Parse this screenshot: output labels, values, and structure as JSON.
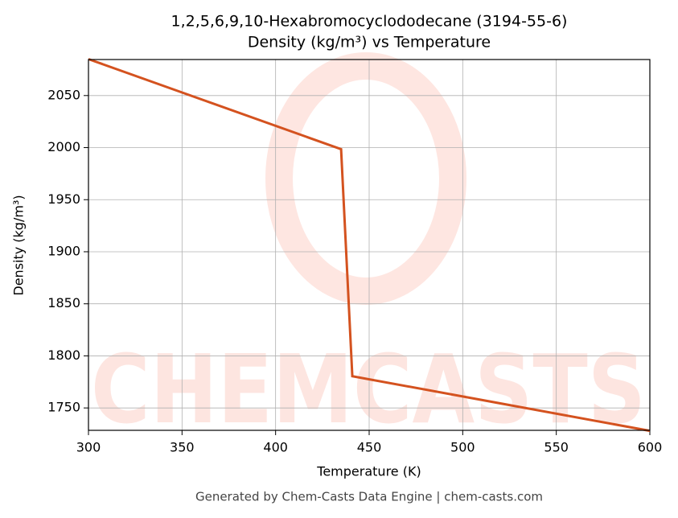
{
  "chart_data": {
    "type": "line",
    "title": "1,2,5,6,9,10-Hexabromocyclododecane (3194-55-6)",
    "subtitle": "Density (kg/m³) vs Temperature",
    "x_label": "Temperature (K)",
    "y_label": "Density (kg/m³)",
    "footer": "Generated by Chem-Casts Data Engine | chem-casts.com",
    "watermark": "CHEMCASTS",
    "x": [
      300,
      435,
      441,
      600
    ],
    "series": [
      {
        "name": "Density",
        "color": "#d4521f",
        "values": [
          2085,
          1998.5,
          1780.5,
          1728
        ]
      }
    ],
    "xlim": [
      300,
      600
    ],
    "xticks": [
      300,
      350,
      400,
      450,
      500,
      550,
      600
    ],
    "ylim": [
      1728.5,
      2084.6
    ],
    "yticks": [
      1750,
      1800,
      1850,
      1900,
      1950,
      2000,
      2050
    ],
    "grid": true
  }
}
